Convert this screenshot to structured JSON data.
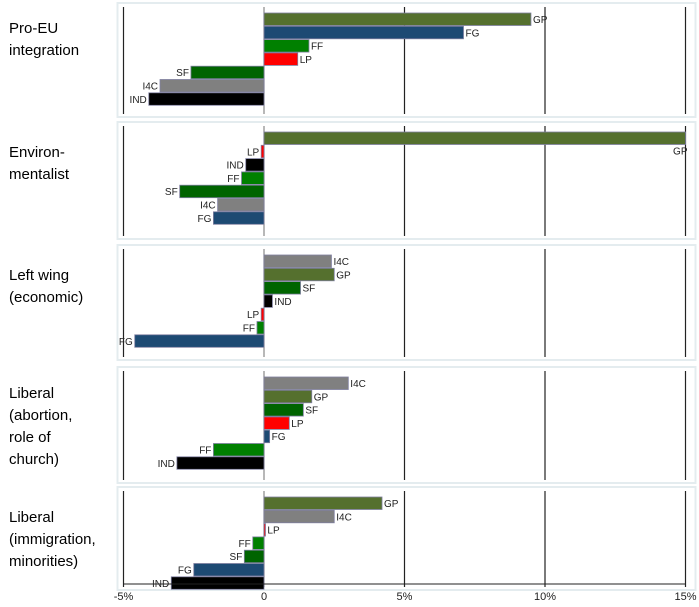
{
  "chart_data": {
    "type": "bar",
    "orientation": "horizontal",
    "xlim": [
      -5,
      15
    ],
    "x_ticks": [
      "-5%",
      "0",
      "5%",
      "10%",
      "15%"
    ],
    "grid": true,
    "party_colors": {
      "GP": "#55702e",
      "FG": "#1d4a73",
      "FF": "#008000",
      "LP": "#ff0000",
      "SF": "#006400",
      "I4C": "#808080",
      "IND": "#000000"
    },
    "panels": [
      {
        "label": "Pro-EU\nintegration",
        "bars": [
          {
            "party": "GP",
            "value": 9.5
          },
          {
            "party": "FG",
            "value": 7.1
          },
          {
            "party": "FF",
            "value": 1.6
          },
          {
            "party": "LP",
            "value": 1.2
          },
          {
            "party": "SF",
            "value": -2.6
          },
          {
            "party": "I4C",
            "value": -3.7
          },
          {
            "party": "IND",
            "value": -4.1
          }
        ]
      },
      {
        "label": "Environ-\nmentalist",
        "bars": [
          {
            "party": "GP",
            "value": 15.0
          },
          {
            "party": "LP",
            "value": -0.1
          },
          {
            "party": "IND",
            "value": -0.65
          },
          {
            "party": "FF",
            "value": -0.8
          },
          {
            "party": "SF",
            "value": -3.0
          },
          {
            "party": "I4C",
            "value": -1.65
          },
          {
            "party": "FG",
            "value": -1.8
          }
        ]
      },
      {
        "label": "Left wing\n(economic)",
        "bars": [
          {
            "party": "I4C",
            "value": 2.4
          },
          {
            "party": "GP",
            "value": 2.5
          },
          {
            "party": "SF",
            "value": 1.3
          },
          {
            "party": "IND",
            "value": 0.3
          },
          {
            "party": "LP",
            "value": -0.1
          },
          {
            "party": "FF",
            "value": -0.25
          },
          {
            "party": "FG",
            "value": -4.6
          }
        ]
      },
      {
        "label": "Liberal\n(abortion,\nrole of\nchurch)",
        "bars": [
          {
            "party": "I4C",
            "value": 3.0
          },
          {
            "party": "GP",
            "value": 1.7
          },
          {
            "party": "SF",
            "value": 1.4
          },
          {
            "party": "LP",
            "value": 0.9
          },
          {
            "party": "FG",
            "value": 0.2
          },
          {
            "party": "FF",
            "value": -1.8
          },
          {
            "party": "IND",
            "value": -3.1
          }
        ]
      },
      {
        "label": "Liberal\n(immigration,\nminorities)",
        "bars": [
          {
            "party": "GP",
            "value": 4.2
          },
          {
            "party": "I4C",
            "value": 2.5
          },
          {
            "party": "LP",
            "value": 0.05
          },
          {
            "party": "FF",
            "value": -0.4
          },
          {
            "party": "SF",
            "value": -0.7
          },
          {
            "party": "FG",
            "value": -2.5
          },
          {
            "party": "IND",
            "value": -3.3
          }
        ]
      }
    ]
  }
}
